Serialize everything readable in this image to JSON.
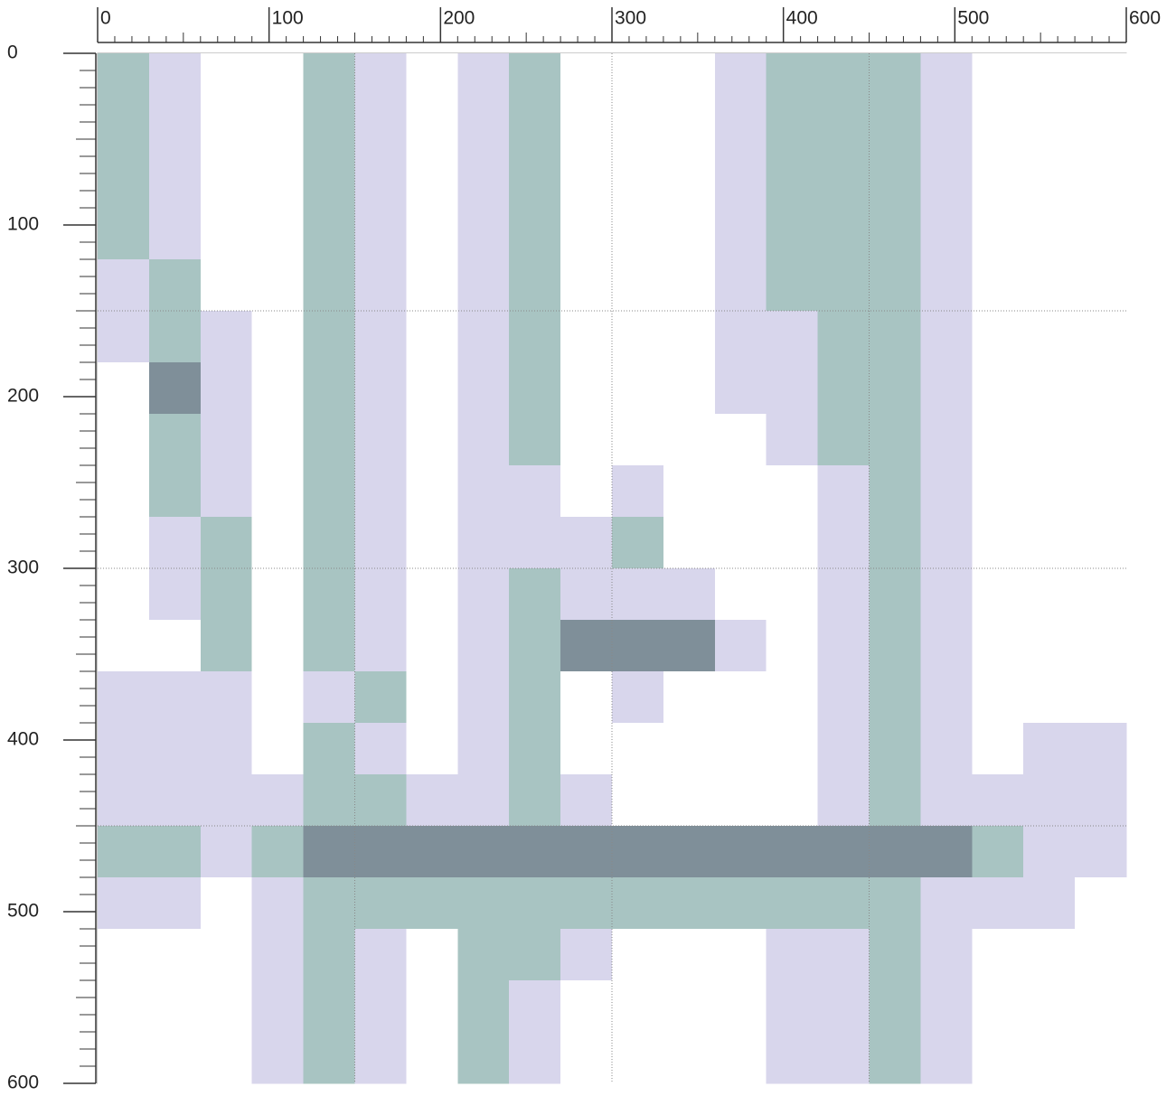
{
  "chart_data": {
    "type": "heatmap",
    "xbins": [
      0,
      30,
      60,
      90,
      120,
      150,
      180,
      210,
      240,
      270,
      300,
      330,
      360,
      390,
      420,
      450,
      480,
      510,
      540,
      570,
      600
    ],
    "ybins": [
      0,
      30,
      60,
      90,
      120,
      150,
      180,
      210,
      240,
      270,
      300,
      330,
      360,
      390,
      420,
      450,
      480,
      510,
      540,
      570,
      600
    ],
    "values": [
      [
        2,
        1,
        0,
        0,
        2,
        1,
        0,
        1,
        2,
        0,
        0,
        0,
        1,
        2,
        2,
        2,
        1,
        0,
        0,
        0
      ],
      [
        2,
        1,
        0,
        0,
        2,
        1,
        0,
        1,
        2,
        0,
        0,
        0,
        1,
        2,
        2,
        2,
        1,
        0,
        0,
        0
      ],
      [
        2,
        1,
        0,
        0,
        2,
        1,
        0,
        1,
        2,
        0,
        0,
        0,
        1,
        2,
        2,
        2,
        1,
        0,
        0,
        0
      ],
      [
        2,
        1,
        0,
        0,
        2,
        1,
        0,
        1,
        2,
        0,
        0,
        0,
        1,
        2,
        2,
        2,
        1,
        0,
        0,
        0
      ],
      [
        1,
        2,
        0,
        0,
        2,
        1,
        0,
        1,
        2,
        0,
        0,
        0,
        1,
        2,
        2,
        2,
        1,
        0,
        0,
        0
      ],
      [
        1,
        2,
        1,
        0,
        2,
        1,
        0,
        1,
        2,
        0,
        0,
        0,
        1,
        1,
        2,
        2,
        1,
        0,
        0,
        0
      ],
      [
        0,
        3,
        1,
        0,
        2,
        1,
        0,
        1,
        2,
        0,
        0,
        0,
        1,
        1,
        2,
        2,
        1,
        0,
        0,
        0
      ],
      [
        0,
        2,
        1,
        0,
        2,
        1,
        0,
        1,
        2,
        0,
        0,
        0,
        0,
        1,
        2,
        2,
        1,
        0,
        0,
        0
      ],
      [
        0,
        2,
        1,
        0,
        2,
        1,
        0,
        1,
        1,
        0,
        1,
        0,
        0,
        0,
        1,
        2,
        1,
        0,
        0,
        0
      ],
      [
        0,
        1,
        2,
        0,
        2,
        1,
        0,
        1,
        1,
        1,
        2,
        0,
        0,
        0,
        1,
        2,
        1,
        0,
        0,
        0
      ],
      [
        0,
        1,
        2,
        0,
        2,
        1,
        0,
        1,
        2,
        1,
        1,
        1,
        0,
        0,
        1,
        2,
        1,
        0,
        0,
        0
      ],
      [
        0,
        0,
        2,
        0,
        2,
        1,
        0,
        1,
        2,
        3,
        3,
        3,
        1,
        0,
        1,
        2,
        1,
        0,
        0,
        0
      ],
      [
        1,
        1,
        1,
        0,
        1,
        2,
        0,
        1,
        2,
        0,
        1,
        0,
        0,
        0,
        1,
        2,
        1,
        0,
        0,
        0
      ],
      [
        1,
        1,
        1,
        0,
        2,
        1,
        0,
        1,
        2,
        0,
        0,
        0,
        0,
        0,
        1,
        2,
        1,
        0,
        1,
        1
      ],
      [
        1,
        1,
        1,
        1,
        2,
        2,
        1,
        1,
        2,
        1,
        0,
        0,
        0,
        0,
        1,
        2,
        1,
        1,
        1,
        1
      ],
      [
        2,
        2,
        1,
        2,
        3,
        3,
        3,
        3,
        3,
        3,
        3,
        3,
        3,
        3,
        3,
        3,
        3,
        2,
        1,
        1
      ],
      [
        1,
        1,
        0,
        1,
        2,
        2,
        2,
        2,
        2,
        2,
        2,
        2,
        2,
        2,
        2,
        2,
        1,
        1,
        1,
        0
      ],
      [
        0,
        0,
        0,
        1,
        2,
        1,
        0,
        2,
        2,
        1,
        0,
        0,
        0,
        1,
        1,
        2,
        1,
        0,
        0,
        0
      ],
      [
        0,
        0,
        0,
        1,
        2,
        1,
        0,
        2,
        1,
        0,
        0,
        0,
        0,
        1,
        1,
        2,
        1,
        0,
        0,
        0
      ],
      [
        0,
        0,
        0,
        1,
        2,
        1,
        0,
        2,
        1,
        0,
        0,
        0,
        0,
        1,
        1,
        2,
        1,
        0,
        0,
        0
      ]
    ],
    "colors": [
      "#ffffff",
      "#d8d6ec",
      "#a8c4c2",
      "#7f8f99"
    ],
    "xlim": [
      0,
      600
    ],
    "ylim": [
      0,
      600
    ],
    "xticks": [
      0,
      100,
      200,
      300,
      400,
      500,
      600
    ],
    "yticks": [
      0,
      100,
      200,
      300,
      400,
      500,
      600
    ],
    "xgrid": [
      150,
      300,
      450
    ],
    "ygrid": [
      150,
      300,
      450
    ]
  }
}
